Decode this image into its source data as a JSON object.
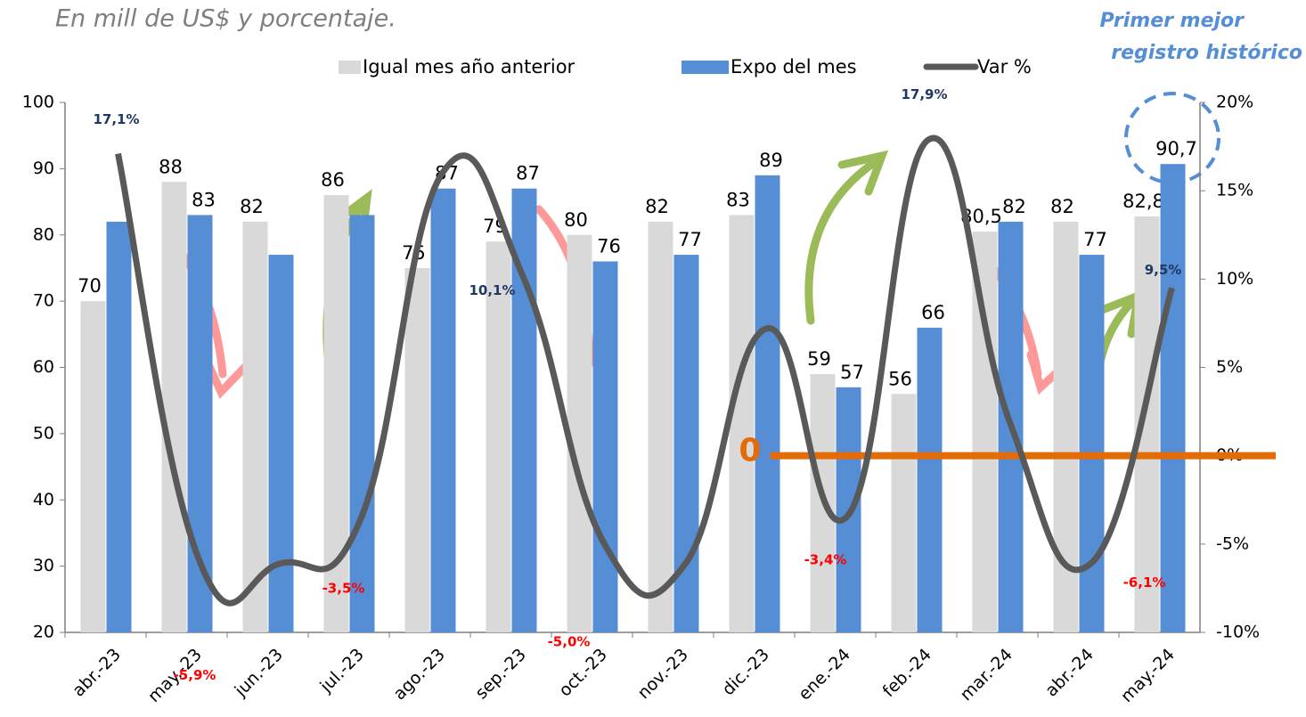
{
  "chart_data": {
    "type": "bar_line",
    "subtitle": "En mill de US$ y porcentaje.",
    "annotation": "Primer mejor registro histórico",
    "categories": [
      "abr.-23",
      "may.-23",
      "jun.-23",
      "jul.-23",
      "ago.-23",
      "sep.-23",
      "oct.-23",
      "nov.-23",
      "dic.-23",
      "ene.-24",
      "feb.-24",
      "mar.-24",
      "abr.-24",
      "may.-24"
    ],
    "series": [
      {
        "name": "Igual mes año anterior",
        "color": "#d9d9d9",
        "values": [
          70,
          88,
          82,
          86,
          75,
          79,
          80,
          82,
          83,
          59,
          56,
          80.5,
          82,
          82.8
        ],
        "value_labels": [
          "70",
          "88",
          "82",
          "86",
          "75",
          "79",
          "80",
          "82",
          "83",
          "59",
          "56",
          "80,5",
          "82",
          "82,8"
        ]
      },
      {
        "name": "Expo del mes",
        "color": "#558ed5",
        "values": [
          82,
          83,
          77,
          83,
          87,
          87,
          76,
          77,
          89,
          57,
          66,
          82,
          77,
          90.7
        ],
        "value_labels": [
          null,
          "83",
          null,
          null,
          "87",
          "87",
          "76",
          "77",
          "89",
          "57",
          "66",
          "82",
          "77",
          "90,7"
        ]
      },
      {
        "name": "Var %",
        "color": "#595959",
        "axis": "y2",
        "values": [
          17.1,
          -5.9,
          -6.1,
          -3.5,
          16.0,
          10.1,
          -5.0,
          -6.1,
          7.2,
          -3.4,
          17.9,
          1.9,
          -6.1,
          9.5
        ],
        "value_labels": [
          "17,1%",
          "-5,9%",
          null,
          "-3,5%",
          null,
          "10,1%",
          "-5,0%",
          null,
          null,
          "-3,4%",
          "17,9%",
          null,
          "-6,1%",
          "9,5%"
        ]
      }
    ],
    "zero_line": {
      "label": "0",
      "value": 0,
      "color": "#e36c09"
    },
    "ylim": [
      20,
      100
    ],
    "yticks": [
      20,
      30,
      40,
      50,
      60,
      70,
      80,
      90,
      100
    ],
    "y2lim": [
      -10,
      20
    ],
    "y2ticks": [
      {
        "value": -10,
        "label": "-10%"
      },
      {
        "value": -5,
        "label": "-5%"
      },
      {
        "value": 0,
        "label": "0%"
      },
      {
        "value": 5,
        "label": "5%"
      },
      {
        "value": 10,
        "label": "10%"
      },
      {
        "value": 15,
        "label": "15%"
      },
      {
        "value": 20,
        "label": "20%"
      }
    ],
    "legend": "top"
  }
}
